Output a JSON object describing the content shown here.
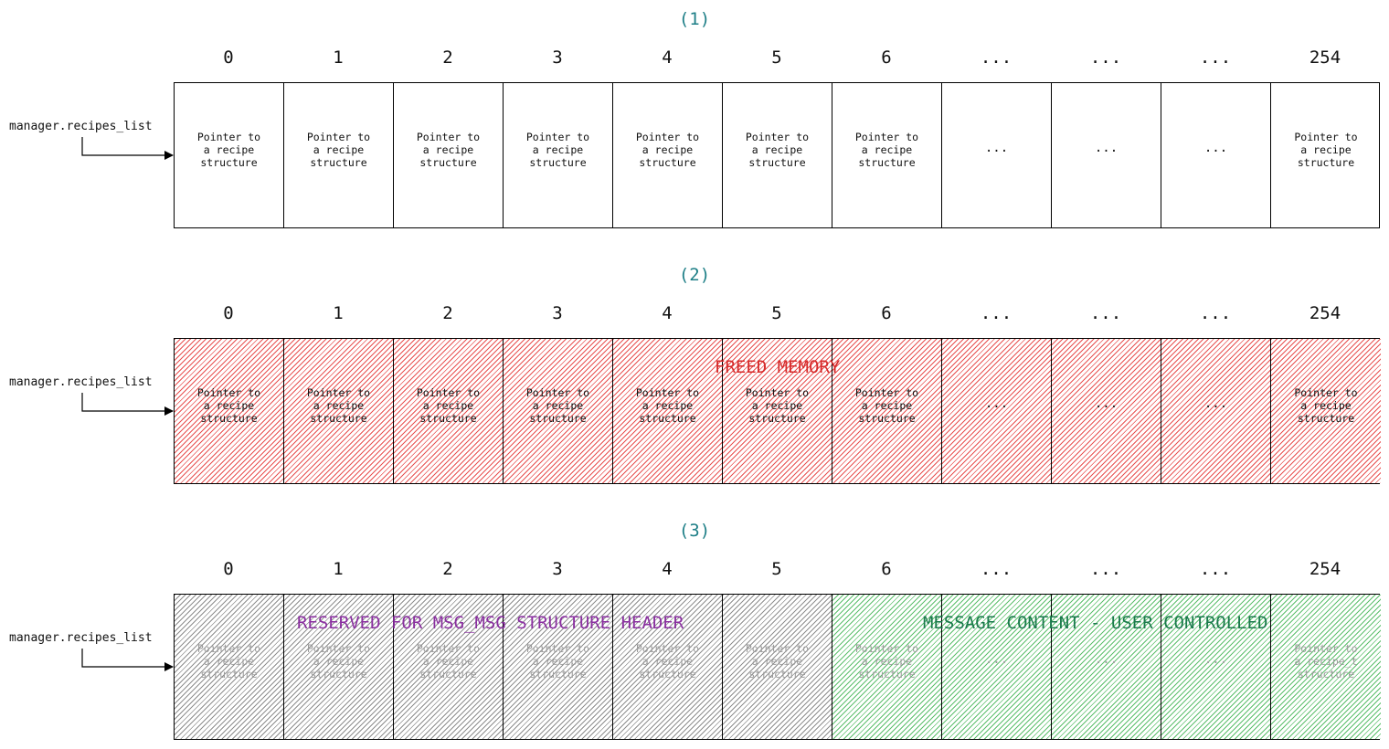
{
  "pointer_label": "manager.recipes_list",
  "panels": [
    {
      "title": "(1)",
      "indices": [
        "0",
        "1",
        "2",
        "3",
        "4",
        "5",
        "6",
        "...",
        "...",
        "...",
        "254"
      ],
      "cells": [
        "Pointer to\na recipe\nstructure",
        "Pointer to\na recipe\nstructure",
        "Pointer to\na recipe\nstructure",
        "Pointer to\na recipe\nstructure",
        "Pointer to\na recipe\nstructure",
        "Pointer to\na recipe\nstructure",
        "Pointer to\na recipe\nstructure",
        "...",
        "...",
        "...",
        "Pointer to\na recipe\nstructure"
      ]
    },
    {
      "title": "(2)",
      "indices": [
        "0",
        "1",
        "2",
        "3",
        "4",
        "5",
        "6",
        "...",
        "...",
        "...",
        "254"
      ],
      "cells": [
        "Pointer to\na recipe\nstructure",
        "Pointer to\na recipe\nstructure",
        "Pointer to\na recipe\nstructure",
        "Pointer to\na recipe\nstructure",
        "Pointer to\na recipe\nstructure",
        "Pointer to\na recipe\nstructure",
        "Pointer to\na recipe\nstructure",
        "...",
        "...",
        "...",
        "Pointer to\na recipe\nstructure"
      ],
      "overlay": "FREED MEMORY"
    },
    {
      "title": "(3)",
      "indices": [
        "0",
        "1",
        "2",
        "3",
        "4",
        "5",
        "6",
        "...",
        "...",
        "...",
        "254"
      ],
      "cells": [
        "Pointer to\na recipe\nstructure",
        "Pointer to\na recipe\nstructure",
        "Pointer to\na recipe\nstructure",
        "Pointer to\na recipe\nstructure",
        "Pointer to\na recipe\nstructure",
        "Pointer to\na recipe\nstructure",
        "Pointer to\na recipe\nstructure",
        "...",
        "...",
        "...",
        "Pointer to\na recipe_t\nstructure"
      ],
      "overlay_header": "RESERVED FOR MSG_MSG STRUCTURE HEADER",
      "overlay_content": "MESSAGE CONTENT - USER CONTROLLED"
    }
  ],
  "colors": {
    "title": "#1e7f87",
    "freed": "#d62a2a",
    "reserved": "#8a2ea0",
    "content": "#1a7a4c"
  }
}
